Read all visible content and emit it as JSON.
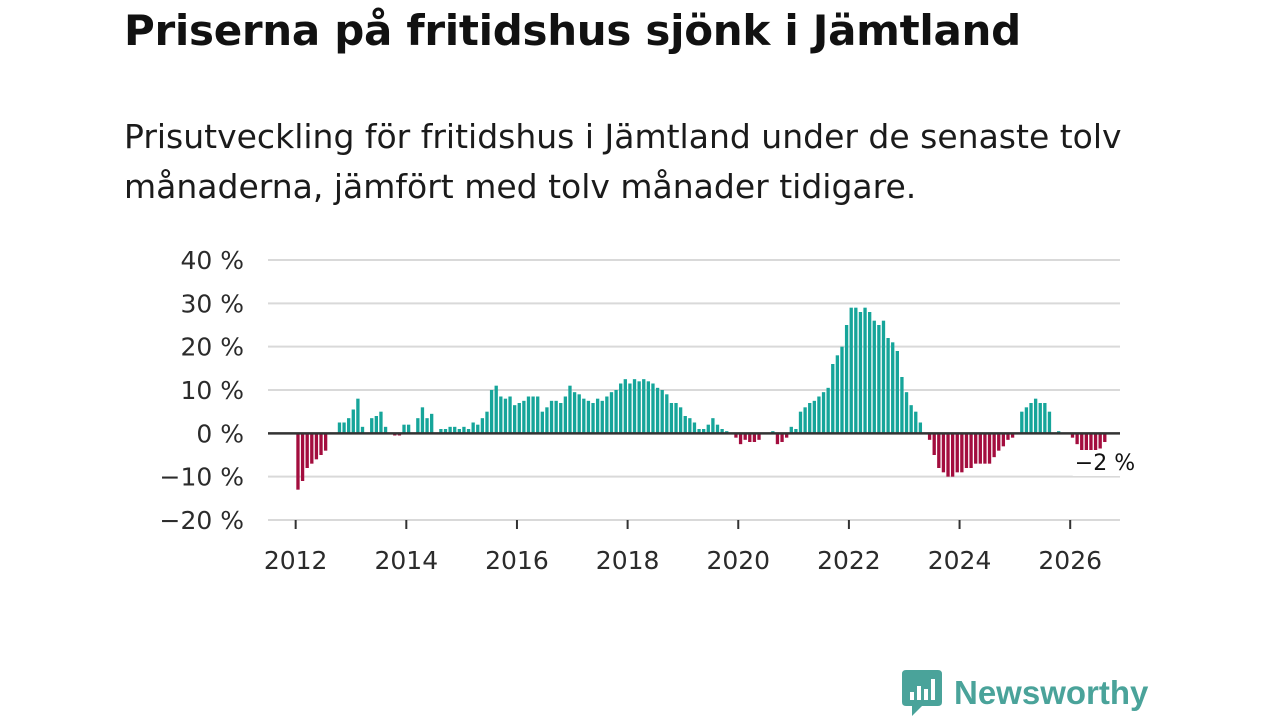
{
  "title": "Priserna på fritidshus sjönk i Jämtland",
  "subtitle": "Prisutveckling för fritidshus i Jämtland under de senaste tolv månaderna, jämfört med tolv månader tidigare.",
  "brand": {
    "name": "Newsworthy",
    "icon": "newsworthy-logo-icon",
    "color": "#4aa39a"
  },
  "chart_data": {
    "type": "bar",
    "title": "Priserna på fritidshus sjönk i Jämtland",
    "xlabel": "",
    "ylabel": "",
    "unit": "%",
    "ylim": [
      -20,
      40
    ],
    "xlim": [
      2011.5,
      2026.9
    ],
    "grid": true,
    "yticks": [
      40,
      30,
      20,
      10,
      0,
      -10,
      -20
    ],
    "ytick_labels": [
      "40 %",
      "30 %",
      "20 %",
      "10 %",
      "0 %",
      "−10 %",
      "−20 %"
    ],
    "xticks": [
      2012,
      2014,
      2016,
      2018,
      2020,
      2022,
      2024,
      2026
    ],
    "xtick_labels": [
      "2012",
      "2014",
      "2016",
      "2018",
      "2020",
      "2022",
      "2024",
      "2026"
    ],
    "start": "2012-01",
    "frequency": "monthly",
    "colors": {
      "positive": "#16a59a",
      "negative": "#a30d3e",
      "zero_line": "#333333",
      "grid": "#d9d9d9"
    },
    "values": [
      -13,
      -11,
      -8,
      -7,
      -6,
      -5,
      -4,
      0,
      0,
      2.5,
      2.5,
      3.5,
      5.5,
      8,
      1.5,
      0,
      3.5,
      4,
      5,
      1.5,
      0,
      -0.5,
      -0.5,
      2,
      2,
      0,
      3.5,
      6,
      3.5,
      4.5,
      0,
      1,
      1,
      1.5,
      1.5,
      1,
      1.5,
      1,
      2.5,
      2,
      3.5,
      5,
      10,
      11,
      8.5,
      8,
      8.5,
      6.5,
      7,
      7.5,
      8.5,
      8.5,
      8.5,
      5,
      6,
      7.5,
      7.5,
      7,
      8.5,
      11,
      9.5,
      9,
      8,
      7.5,
      7,
      8,
      7.5,
      8.5,
      9.5,
      10,
      11.5,
      12.5,
      11.5,
      12.5,
      12,
      12.5,
      12,
      11.5,
      10.5,
      10,
      9,
      7,
      7,
      6,
      4,
      3.5,
      2.5,
      1,
      1,
      2,
      3.5,
      2,
      1,
      0.5,
      0,
      -1,
      -2.5,
      -1.5,
      -2,
      -2,
      -1.5,
      0,
      0,
      0.5,
      -2.5,
      -2,
      -1,
      1.5,
      1,
      5,
      6,
      7,
      7.5,
      8.5,
      9.5,
      10.5,
      16,
      18,
      20,
      25,
      29,
      29,
      28,
      29,
      28,
      26,
      25,
      26,
      22,
      21,
      19,
      13,
      9.5,
      6.5,
      5,
      2.5,
      0,
      -1.5,
      -5,
      -8,
      -9,
      -10,
      -10,
      -9,
      -9,
      -8,
      -8,
      -7,
      -7,
      -7,
      -7,
      -5.5,
      -4,
      -3,
      -1.5,
      -1,
      0,
      5,
      6,
      7,
      8,
      7,
      7,
      5,
      0,
      0.5,
      0,
      0,
      -1,
      -2.5,
      -4,
      -5,
      -4,
      -4,
      -3.5,
      -2
    ],
    "annotations": [
      {
        "text": "−2 %",
        "target": "last"
      }
    ]
  }
}
